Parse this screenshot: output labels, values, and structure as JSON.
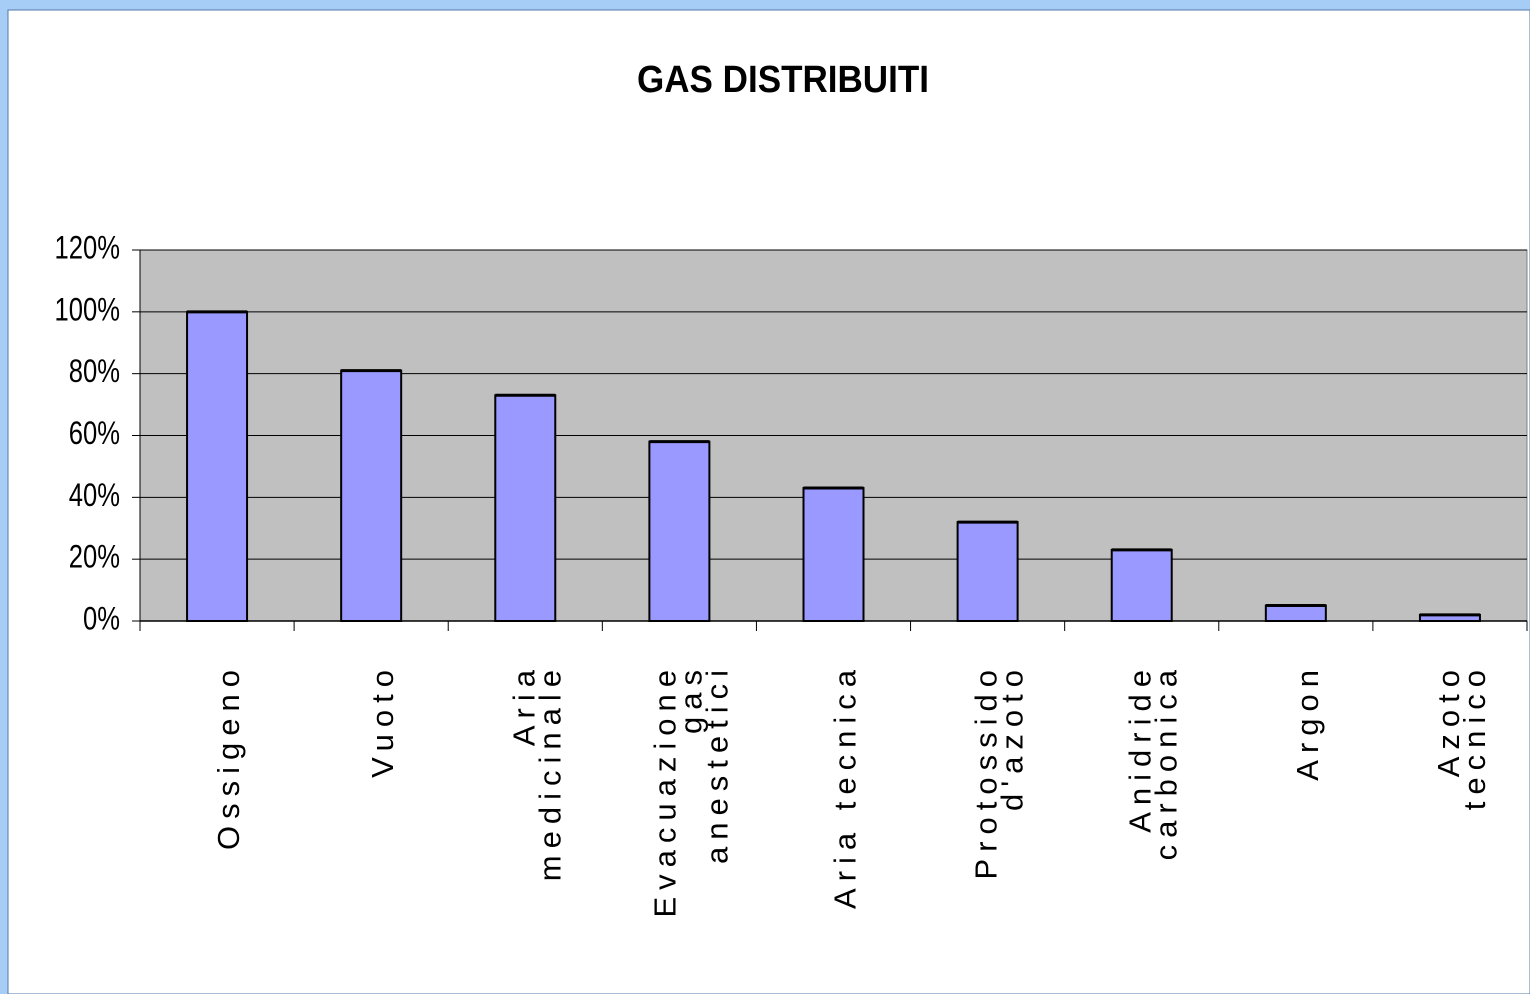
{
  "chart_data": {
    "type": "bar",
    "title": "GAS DISTRIBUITI",
    "categories": [
      "Ossigeno",
      "Vuoto",
      "Aria\nmedicinale",
      "Evacuazione\ngas\nanestetici",
      "Aria tecnica",
      "Protossido\nd'azoto",
      "Anidride\ncarbonica",
      "Argon",
      "Azoto\ntecnico"
    ],
    "values": [
      100,
      81,
      73,
      58,
      43,
      32,
      23,
      5,
      2
    ],
    "color": "#9999ff",
    "ylim": [
      0,
      120
    ],
    "yticks": [
      {
        "value": 0,
        "label": "0%"
      },
      {
        "value": 20,
        "label": "20%"
      },
      {
        "value": 40,
        "label": "40%"
      },
      {
        "value": 60,
        "label": "60%"
      },
      {
        "value": 80,
        "label": "80%"
      },
      {
        "value": 100,
        "label": "100%"
      },
      {
        "value": 120,
        "label": "120%"
      }
    ],
    "grid": true
  }
}
